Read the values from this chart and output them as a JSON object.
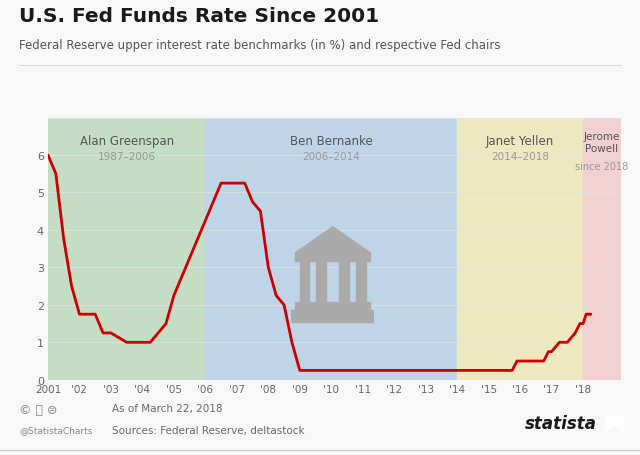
{
  "title": "U.S. Fed Funds Rate Since 2001",
  "subtitle": "Federal Reserve upper interest rate benchmarks (in %) and respective Fed chairs",
  "footnote": "As of March 22, 2018",
  "source": "Sources: Federal Reserve, deltastock",
  "credit": "@StatistaCharts",
  "ylim": [
    0,
    7
  ],
  "yticks": [
    0,
    1,
    2,
    3,
    4,
    5,
    6,
    7
  ],
  "bg_color": "#f8f8f8",
  "chart_bg": "#ffffff",
  "line_color": "#cc0000",
  "line_width": 2.0,
  "zones": [
    {
      "label": "Alan Greenspan",
      "sublabel": "1987–2006",
      "xmin": 2001.0,
      "xmax": 2006.0,
      "color": "#c5dcc5"
    },
    {
      "label": "Ben Bernanke",
      "sublabel": "2006–2014",
      "xmin": 2006.0,
      "xmax": 2014.0,
      "color": "#c0d4e8"
    },
    {
      "label": "Janet Yellen",
      "sublabel": "2014–2018",
      "xmin": 2014.0,
      "xmax": 2018.0,
      "color": "#ede8c0"
    },
    {
      "label": "Jerome\nPowell",
      "sublabel": "since 2018",
      "xmin": 2018.0,
      "xmax": 2019.2,
      "color": "#f0d0d0"
    }
  ],
  "data": [
    [
      2001.0,
      6.0
    ],
    [
      2001.25,
      5.5
    ],
    [
      2001.5,
      3.75
    ],
    [
      2001.75,
      2.5
    ],
    [
      2002.0,
      1.75
    ],
    [
      2002.5,
      1.75
    ],
    [
      2002.75,
      1.25
    ],
    [
      2003.0,
      1.25
    ],
    [
      2003.5,
      1.0
    ],
    [
      2004.0,
      1.0
    ],
    [
      2004.25,
      1.0
    ],
    [
      2004.5,
      1.25
    ],
    [
      2004.75,
      1.5
    ],
    [
      2005.0,
      2.25
    ],
    [
      2005.25,
      2.75
    ],
    [
      2005.5,
      3.25
    ],
    [
      2005.75,
      3.75
    ],
    [
      2006.0,
      4.25
    ],
    [
      2006.25,
      4.75
    ],
    [
      2006.5,
      5.25
    ],
    [
      2006.75,
      5.25
    ],
    [
      2007.0,
      5.25
    ],
    [
      2007.25,
      5.25
    ],
    [
      2007.5,
      4.75
    ],
    [
      2007.75,
      4.5
    ],
    [
      2008.0,
      3.0
    ],
    [
      2008.25,
      2.25
    ],
    [
      2008.5,
      2.0
    ],
    [
      2008.75,
      1.0
    ],
    [
      2009.0,
      0.25
    ],
    [
      2010.0,
      0.25
    ],
    [
      2011.0,
      0.25
    ],
    [
      2012.0,
      0.25
    ],
    [
      2013.0,
      0.25
    ],
    [
      2014.0,
      0.25
    ],
    [
      2015.0,
      0.25
    ],
    [
      2015.75,
      0.25
    ],
    [
      2015.9,
      0.5
    ],
    [
      2016.0,
      0.5
    ],
    [
      2016.75,
      0.5
    ],
    [
      2016.9,
      0.75
    ],
    [
      2017.0,
      0.75
    ],
    [
      2017.25,
      1.0
    ],
    [
      2017.5,
      1.0
    ],
    [
      2017.75,
      1.25
    ],
    [
      2017.9,
      1.5
    ],
    [
      2018.0,
      1.5
    ],
    [
      2018.1,
      1.75
    ],
    [
      2018.25,
      1.75
    ]
  ],
  "xtick_labels": [
    "2001",
    "'02",
    "'03",
    "'04",
    "'05",
    "'06",
    "'07",
    "'08",
    "'09",
    "'10",
    "'11",
    "'12",
    "'13",
    "'14",
    "'15",
    "'16",
    "'17",
    "'18"
  ],
  "xtick_positions": [
    2001,
    2002,
    2003,
    2004,
    2005,
    2006,
    2007,
    2008,
    2009,
    2010,
    2011,
    2012,
    2013,
    2014,
    2015,
    2016,
    2017,
    2018
  ],
  "icon_color": "#aaaaaa",
  "zone_label_color": "#555555",
  "zone_sublabel_color": "#999999"
}
